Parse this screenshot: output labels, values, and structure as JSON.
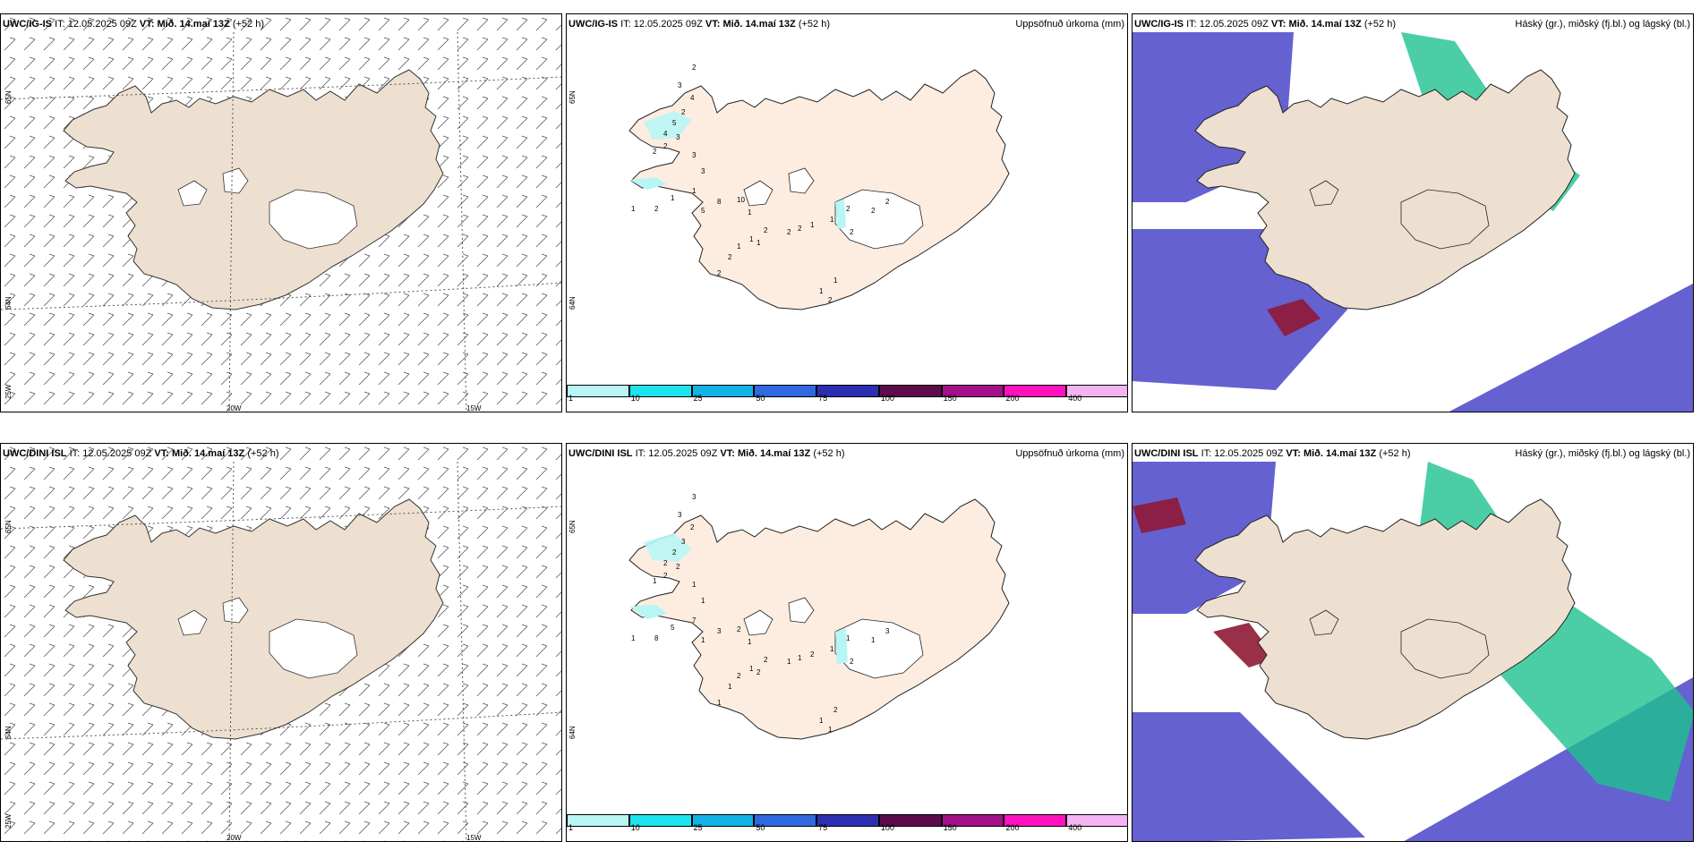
{
  "rows": [
    {
      "model": "UWC/IG-IS",
      "it_label": "IT:",
      "issue": "12.05.2025 09Z",
      "vt_label": "VT:",
      "valid": "Mið. 14.maí 13Z",
      "lead": "(+52 h)"
    },
    {
      "model": "UWC/DINI ISL",
      "it_label": "IT:",
      "issue": "12.05.2025 09Z",
      "vt_label": "VT:",
      "valid": "Mið. 14.maí 13Z",
      "lead": "(+52 h)"
    }
  ],
  "precip_title": "Uppsöfnuð úrkoma (mm)",
  "cloud_title": "Háský (gr.), miðský (fj.bl.) og lágský (bl.)",
  "colorbar": {
    "labels": [
      "1",
      "10",
      "25",
      "50",
      "75",
      "100",
      "150",
      "200",
      "400"
    ],
    "colors": [
      "#b8f5f5",
      "#1ce4ee",
      "#12b4e6",
      "#2f68e0",
      "#2d2fb2",
      "#5e0b4c",
      "#a3108a",
      "#ff12be",
      "#f4b4f2"
    ]
  },
  "grid": {
    "lat_65": "65N",
    "lat_64": "64N",
    "lon_25w": "25W",
    "lon_20w": "20W",
    "lon_15w": "15W"
  },
  "precip_values": {
    "row1": [
      "2",
      "3",
      "4",
      "2",
      "5",
      "4",
      "3",
      "2",
      "2",
      "3",
      "3",
      "1",
      "1",
      "2",
      "1",
      "5",
      "8",
      "10",
      "1",
      "1",
      "1",
      "2",
      "2",
      "1",
      "2",
      "2",
      "2",
      "1",
      "1",
      "2",
      "2",
      "2",
      "2",
      "1",
      "1",
      "2"
    ],
    "row2": [
      "3",
      "3",
      "2",
      "3",
      "2",
      "2",
      "2",
      "2",
      "1",
      "1",
      "1",
      "7",
      "5",
      "8",
      "1",
      "1",
      "3",
      "2",
      "1",
      "2",
      "2",
      "1",
      "1",
      "1",
      "2",
      "1",
      "1",
      "2",
      "1",
      "1",
      "1",
      "3",
      "2",
      "2",
      "1",
      "1"
    ]
  },
  "colors": {
    "land_wind": "#ede0d0",
    "land_precip": "#fcede0",
    "high_cloud": "#1ec28e",
    "mid_cloud": "#8f1836",
    "low_cloud": "#4a45c8"
  }
}
